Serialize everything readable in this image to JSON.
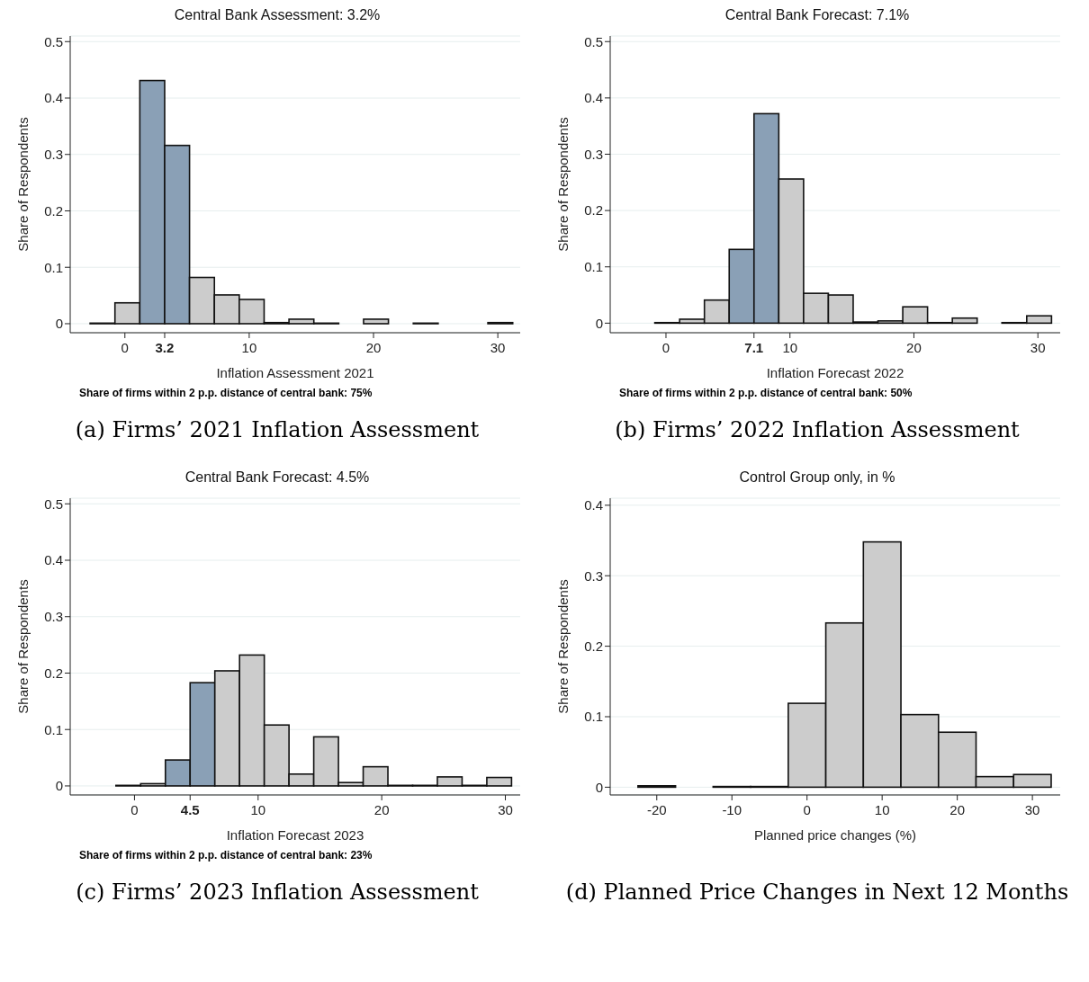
{
  "chart_data": [
    {
      "type": "histogram",
      "title": "Central Bank Assessment: 3.2%",
      "xlabel": "Inflation Assessment 2021",
      "ylabel": "Share of Respondents",
      "annotations": [
        "Share of firms within 2 p.p. distance of central bank: 75%",
        "(a) Firms’ 2021 Inflation Assessment"
      ],
      "bins": [
        -2.8,
        -0.8,
        1.2,
        3.2,
        5.2,
        7.2,
        9.2,
        11.2,
        13.2,
        15.2,
        17.2,
        19.2,
        21.2,
        23.2,
        25.2,
        27.2,
        29.2,
        31.2
      ],
      "values": [
        0.001,
        0.037,
        0.431,
        0.316,
        0.082,
        0.051,
        0.043,
        0.002,
        0.008,
        0.001,
        0,
        0.008,
        0,
        0.001,
        0,
        0,
        0.002
      ],
      "colors": [
        "#cccccc",
        "#cccccc",
        "#8aa0b6",
        "#8aa0b6",
        "#cccccc",
        "#cccccc",
        "#cccccc",
        "#cccccc",
        "#cccccc",
        "#cccccc",
        "#cccccc",
        "#cccccc",
        "#cccccc",
        "#cccccc",
        "#cccccc",
        "#cccccc",
        "#cccccc"
      ],
      "xlim": [
        -4.4,
        31.8
      ],
      "xticks": [
        0,
        {
          "value": 3.2,
          "label": "3.2"
        },
        10,
        20,
        30
      ],
      "ylim": [
        -0.016,
        0.51
      ],
      "yticks": [
        0,
        0.1,
        0.2,
        0.3,
        0.4,
        0.5
      ],
      "grid": "y"
    },
    {
      "type": "histogram",
      "title": "Central Bank Forecast: 7.1%",
      "xlabel": "Inflation Forecast 2022",
      "ylabel": "Share of Respondents",
      "annotations": [
        "Share of firms within 2 p.p. distance of central bank: 50%",
        "(b) Firms’ 2022 Inflation Assessment"
      ],
      "bins": [
        -0.9,
        1.1,
        3.1,
        5.1,
        7.1,
        9.1,
        11.1,
        13.1,
        15.1,
        17.1,
        19.1,
        21.1,
        23.1,
        25.1,
        27.1,
        29.1,
        31.1
      ],
      "values": [
        0.001,
        0.007,
        0.041,
        0.131,
        0.372,
        0.256,
        0.053,
        0.05,
        0.002,
        0.004,
        0.029,
        0.001,
        0.009,
        0,
        0.001,
        0.013
      ],
      "colors": [
        "#cccccc",
        "#cccccc",
        "#cccccc",
        "#8aa0b6",
        "#8aa0b6",
        "#cccccc",
        "#cccccc",
        "#cccccc",
        "#cccccc",
        "#cccccc",
        "#cccccc",
        "#cccccc",
        "#cccccc",
        "#cccccc",
        "#cccccc",
        "#cccccc"
      ],
      "xlim": [
        -4.5,
        31.8
      ],
      "xticks": [
        0,
        {
          "value": 7.1,
          "label": "7.1"
        },
        10,
        20,
        30
      ],
      "ylim": [
        -0.017,
        0.51
      ],
      "yticks": [
        0,
        0.1,
        0.2,
        0.3,
        0.4,
        0.5
      ],
      "grid": "y"
    },
    {
      "type": "histogram",
      "title": "Central Bank Forecast: 4.5%",
      "xlabel": "Inflation Forecast 2023",
      "ylabel": "Share of Respondents",
      "annotations": [
        "Share of firms within 2 p.p. distance of central bank: 23%",
        "(c) Firms’ 2023 Inflation Assessment"
      ],
      "bins": [
        -1.5,
        0.5,
        2.5,
        4.5,
        6.5,
        8.5,
        10.5,
        12.5,
        14.5,
        16.5,
        18.5,
        20.5,
        22.5,
        24.5,
        26.5,
        28.5,
        30.5
      ],
      "values": [
        0.001,
        0.004,
        0.046,
        0.183,
        0.204,
        0.232,
        0.108,
        0.021,
        0.087,
        0.006,
        0.034,
        0.001,
        0.001,
        0.016,
        0.001,
        0.015
      ],
      "colors": [
        "#cccccc",
        "#cccccc",
        "#8aa0b6",
        "#8aa0b6",
        "#cccccc",
        "#cccccc",
        "#cccccc",
        "#cccccc",
        "#cccccc",
        "#cccccc",
        "#cccccc",
        "#cccccc",
        "#cccccc",
        "#cccccc",
        "#cccccc",
        "#cccccc"
      ],
      "xlim": [
        -5.2,
        31.2
      ],
      "xticks": [
        0,
        {
          "value": 4.5,
          "label": "4.5"
        },
        10,
        20,
        30
      ],
      "ylim": [
        -0.016,
        0.51
      ],
      "yticks": [
        0,
        0.1,
        0.2,
        0.3,
        0.4,
        0.5
      ],
      "grid": "y"
    },
    {
      "type": "histogram",
      "title": "Control Group only, in %",
      "xlabel": "Planned price changes (%)",
      "ylabel": "Share of Respondents",
      "annotations": [
        "(d) Planned Price Changes in Next 12 Months"
      ],
      "bins": [
        -22.5,
        -17.5,
        -12.5,
        -7.5,
        -2.5,
        2.5,
        7.5,
        12.5,
        17.5,
        22.5,
        27.5,
        32.5
      ],
      "values": [
        0.002,
        0,
        0.001,
        0.001,
        0.119,
        0.233,
        0.348,
        0.103,
        0.078,
        0.015,
        0.018
      ],
      "colors": [
        "#cccccc",
        "#cccccc",
        "#cccccc",
        "#cccccc",
        "#cccccc",
        "#cccccc",
        "#cccccc",
        "#cccccc",
        "#cccccc",
        "#cccccc",
        "#cccccc"
      ],
      "xlim": [
        -26.2,
        33.7
      ],
      "xticks": [
        -20,
        -10,
        0,
        10,
        20,
        30
      ],
      "ylim": [
        -0.011,
        0.41
      ],
      "yticks": [
        0,
        0.1,
        0.2,
        0.3,
        0.4
      ],
      "grid": "y"
    }
  ]
}
